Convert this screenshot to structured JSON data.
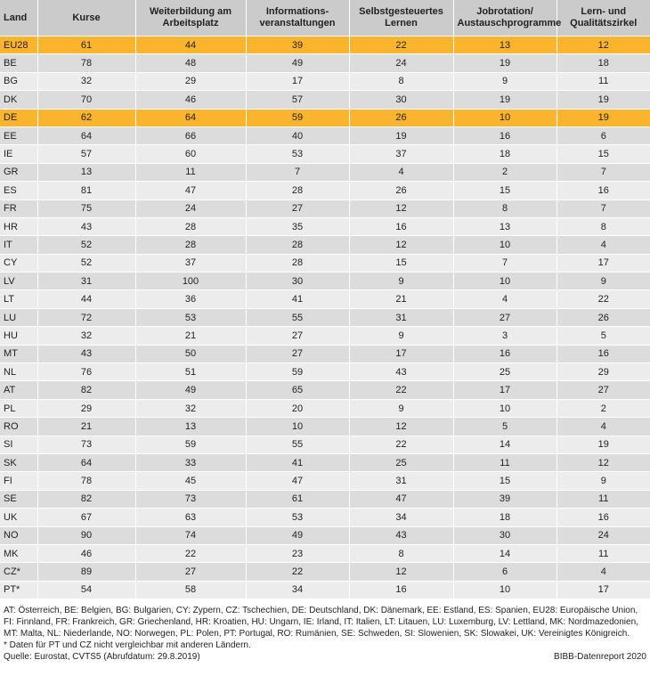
{
  "table": {
    "headers": [
      "Land",
      "Kurse",
      "Weiterbildung am Arbeitsplatz",
      "Informations-veranstaltungen",
      "Selbstgesteuertes Lernen",
      "Jobrotation/ Austauschprogramme",
      "Lern- und Qualitätszirkel"
    ],
    "highlight_color": "#fbb42d",
    "rows": [
      {
        "land": "EU28",
        "values": [
          "61",
          "44",
          "39",
          "22",
          "13",
          "12"
        ],
        "highlight": true
      },
      {
        "land": "BE",
        "values": [
          "78",
          "48",
          "49",
          "24",
          "19",
          "18"
        ]
      },
      {
        "land": "BG",
        "values": [
          "32",
          "29",
          "17",
          "8",
          "9",
          "11"
        ]
      },
      {
        "land": "DK",
        "values": [
          "70",
          "46",
          "57",
          "30",
          "19",
          "19"
        ]
      },
      {
        "land": "DE",
        "values": [
          "62",
          "64",
          "59",
          "26",
          "10",
          "19"
        ],
        "highlight": true
      },
      {
        "land": "EE",
        "values": [
          "64",
          "66",
          "40",
          "19",
          "16",
          "6"
        ]
      },
      {
        "land": "IE",
        "values": [
          "57",
          "60",
          "53",
          "37",
          "18",
          "15"
        ]
      },
      {
        "land": "GR",
        "values": [
          "13",
          "11",
          "7",
          "4",
          "2",
          "7"
        ]
      },
      {
        "land": "ES",
        "values": [
          "81",
          "47",
          "28",
          "26",
          "15",
          "16"
        ]
      },
      {
        "land": "FR",
        "values": [
          "75",
          "24",
          "27",
          "12",
          "8",
          "7"
        ]
      },
      {
        "land": "HR",
        "values": [
          "43",
          "28",
          "35",
          "16",
          "13",
          "8"
        ]
      },
      {
        "land": "IT",
        "values": [
          "52",
          "28",
          "28",
          "12",
          "10",
          "4"
        ]
      },
      {
        "land": "CY",
        "values": [
          "52",
          "37",
          "28",
          "15",
          "7",
          "17"
        ]
      },
      {
        "land": "LV",
        "values": [
          "31",
          "100",
          "30",
          "9",
          "10",
          "9"
        ]
      },
      {
        "land": "LT",
        "values": [
          "44",
          "36",
          "41",
          "21",
          "4",
          "22"
        ]
      },
      {
        "land": "LU",
        "values": [
          "72",
          "53",
          "55",
          "31",
          "27",
          "26"
        ]
      },
      {
        "land": "HU",
        "values": [
          "32",
          "21",
          "27",
          "9",
          "3",
          "5"
        ]
      },
      {
        "land": "MT",
        "values": [
          "43",
          "50",
          "27",
          "17",
          "16",
          "16"
        ]
      },
      {
        "land": "NL",
        "values": [
          "76",
          "51",
          "59",
          "43",
          "25",
          "29"
        ]
      },
      {
        "land": "AT",
        "values": [
          "82",
          "49",
          "65",
          "22",
          "17",
          "27"
        ]
      },
      {
        "land": "PL",
        "values": [
          "29",
          "32",
          "20",
          "9",
          "10",
          "2"
        ]
      },
      {
        "land": "RO",
        "values": [
          "21",
          "13",
          "10",
          "12",
          "5",
          "4"
        ]
      },
      {
        "land": "SI",
        "values": [
          "73",
          "59",
          "55",
          "22",
          "14",
          "19"
        ]
      },
      {
        "land": "SK",
        "values": [
          "64",
          "33",
          "41",
          "25",
          "11",
          "12"
        ]
      },
      {
        "land": "FI",
        "values": [
          "78",
          "45",
          "47",
          "31",
          "15",
          "9"
        ]
      },
      {
        "land": "SE",
        "values": [
          "82",
          "73",
          "61",
          "47",
          "39",
          "11"
        ]
      },
      {
        "land": "UK",
        "values": [
          "67",
          "63",
          "53",
          "34",
          "18",
          "16"
        ]
      },
      {
        "land": "NO",
        "values": [
          "90",
          "74",
          "49",
          "43",
          "30",
          "24"
        ]
      },
      {
        "land": "MK",
        "values": [
          "46",
          "22",
          "23",
          "8",
          "14",
          "11"
        ]
      },
      {
        "land": "CZ*",
        "values": [
          "89",
          "27",
          "22",
          "12",
          "6",
          "4"
        ]
      },
      {
        "land": "PT*",
        "values": [
          "54",
          "58",
          "34",
          "16",
          "10",
          "17"
        ]
      }
    ]
  },
  "footer": {
    "abbreviations": "AT: Österreich, BE: Belgien, BG: Bulgarien, CY: Zypern, CZ: Tschechien, DE: Deutschland, DK: Dänemark, EE: Estland, ES: Spanien, EU28: Europäische Union, FI: Finnland, FR: Frankreich, GR: Griechenland, HR: Kroatien, HU: Ungarn, IE: Irland, IT: Italien, LT: Litauen, LU: Luxemburg, LV: Lettland, MK: Nordmazedonien, MT: Malta, NL: Niederlande, NO: Norwegen, PL: Polen, PT: Portugal, RO: Rumänien, SE: Schweden, SI: Slowenien, SK: Slowakei, UK: Vereinigtes Königreich.",
    "note": "* Daten für PT und CZ nicht vergleichbar mit anderen Ländern.",
    "source": "Quelle: Eurostat, CVTS5 (Abrufdatum: 29.8.2019)",
    "credit": "BIBB-Datenreport 2020"
  }
}
